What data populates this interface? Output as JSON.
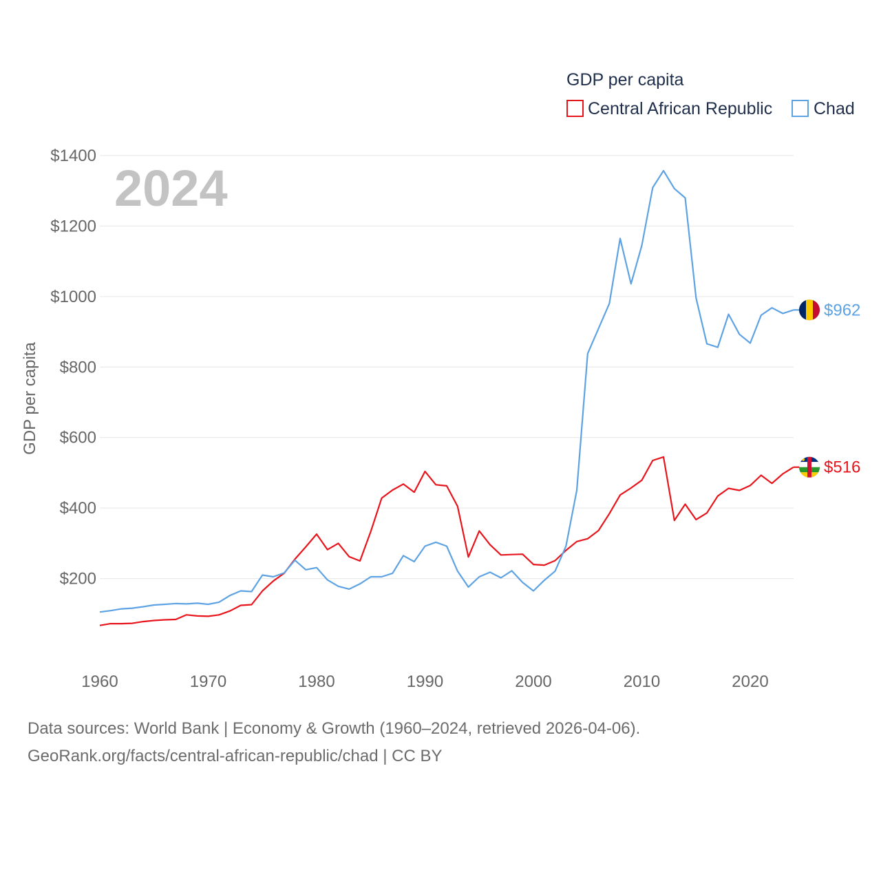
{
  "chart_data": {
    "type": "line",
    "title": "GDP per capita",
    "ylabel": "GDP per capita",
    "xlabel": "",
    "current_year": "2024",
    "xlim": [
      1960,
      2024
    ],
    "ylim": [
      0,
      1400
    ],
    "x_ticks": [
      1960,
      1970,
      1980,
      1990,
      2000,
      2010,
      2020
    ],
    "y_ticks": [
      {
        "value": 200,
        "label": "$200"
      },
      {
        "value": 400,
        "label": "$400"
      },
      {
        "value": 600,
        "label": "$600"
      },
      {
        "value": 800,
        "label": "$800"
      },
      {
        "value": 1000,
        "label": "$1000"
      },
      {
        "value": 1200,
        "label": "$1200"
      },
      {
        "value": 1400,
        "label": "$1400"
      }
    ],
    "grid": true,
    "legend_position": "top-right",
    "x": [
      1960,
      1961,
      1962,
      1963,
      1964,
      1965,
      1966,
      1967,
      1968,
      1969,
      1970,
      1971,
      1972,
      1973,
      1974,
      1975,
      1976,
      1977,
      1978,
      1979,
      1980,
      1981,
      1982,
      1983,
      1984,
      1985,
      1986,
      1987,
      1988,
      1989,
      1990,
      1991,
      1992,
      1993,
      1994,
      1995,
      1996,
      1997,
      1998,
      1999,
      2000,
      2001,
      2002,
      2003,
      2004,
      2005,
      2006,
      2007,
      2008,
      2009,
      2010,
      2011,
      2012,
      2013,
      2014,
      2015,
      2016,
      2017,
      2018,
      2019,
      2020,
      2021,
      2022,
      2023,
      2024
    ],
    "series": [
      {
        "name": "Central African Republic",
        "color": "#e8141b",
        "end_label": "$516",
        "flag": "central-african-republic-flag-icon",
        "values": [
          67,
          72,
          72,
          73,
          78,
          81,
          83,
          84,
          97,
          94,
          93,
          97,
          108,
          124,
          126,
          165,
          193,
          215,
          255,
          290,
          326,
          282,
          300,
          262,
          250,
          334,
          428,
          451,
          468,
          445,
          504,
          466,
          463,
          405,
          261,
          335,
          296,
          267,
          268,
          269,
          240,
          238,
          251,
          280,
          305,
          313,
          336,
          384,
          437,
          457,
          479,
          535,
          545,
          365,
          411,
          367,
          386,
          434,
          456,
          450,
          464,
          493,
          470,
          497,
          516
        ]
      },
      {
        "name": "Chad",
        "color": "#5da2e3",
        "end_label": "$962",
        "flag": "chad-flag-icon",
        "values": [
          105,
          109,
          114,
          116,
          120,
          125,
          127,
          129,
          128,
          130,
          127,
          133,
          152,
          165,
          163,
          210,
          205,
          216,
          252,
          225,
          231,
          196,
          178,
          170,
          185,
          205,
          205,
          215,
          265,
          248,
          292,
          303,
          292,
          221,
          176,
          205,
          218,
          202,
          222,
          189,
          165,
          195,
          221,
          292,
          450,
          838,
          909,
          980,
          1165,
          1036,
          1145,
          1309,
          1357,
          1306,
          1280,
          996,
          866,
          856,
          950,
          893,
          868,
          947,
          968,
          952,
          962
        ]
      }
    ]
  },
  "source_line1": "Data sources: World Bank | Economy & Growth (1960–2024, retrieved 2026-04-06).",
  "source_line2": "GeoRank.org/facts/central-african-republic/chad | CC BY"
}
